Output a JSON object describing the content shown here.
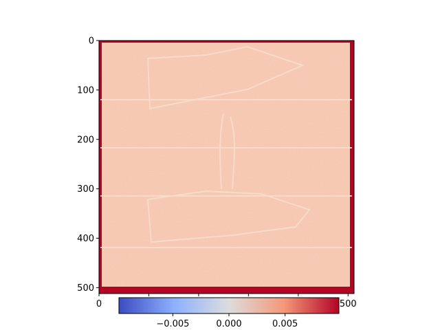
{
  "chart_data": {
    "type": "heatmap",
    "title": "",
    "xlabel": "",
    "ylabel": "",
    "image_size": [
      512,
      512
    ],
    "xlim": [
      0,
      512
    ],
    "ylim": [
      512,
      0
    ],
    "x_ticks": [
      0,
      100,
      200,
      300,
      400,
      500
    ],
    "x_tick_labels": [
      "0",
      "100",
      "200",
      "300",
      "400",
      "500"
    ],
    "y_ticks": [
      0,
      100,
      200,
      300,
      400,
      500
    ],
    "y_tick_labels": [
      "0",
      "100",
      "200",
      "300",
      "400",
      "500"
    ],
    "colormap": "coolwarm",
    "colormap_colors": [
      "#3b4cc0",
      "#8db0fe",
      "#dddddd",
      "#f4987a",
      "#b40426"
    ],
    "background_value_color": "#f5c2a8",
    "border_value_color": "#b40426",
    "colorbar": {
      "orientation": "horizontal",
      "placement": "bottom",
      "vmin": -0.0098,
      "vmax": 0.0098,
      "ticks": [
        -0.005,
        0.0,
        0.005
      ],
      "tick_labels": [
        "−0.005",
        "0.000",
        "0.005"
      ]
    }
  }
}
